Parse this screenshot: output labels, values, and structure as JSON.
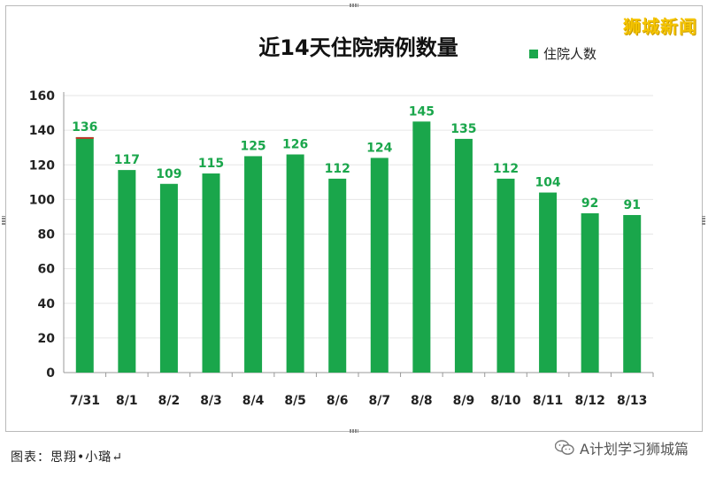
{
  "watermark_top": "狮城新闻",
  "caption": "图表：思翔•小璐↵",
  "wechat_watermark": "A计划学习狮城篇",
  "icons": {
    "wechat": "wechat-icon"
  },
  "colors": {
    "bar": "#1aa64b",
    "label": "#1aa64b",
    "top_highlight": "#c0392b",
    "watermark": "#f5c400"
  },
  "chart_data": {
    "type": "bar",
    "title": "近14天住院病例数量",
    "legend": {
      "position": "top-right",
      "label": "住院人数"
    },
    "categories": [
      "7/31",
      "8/1",
      "8/2",
      "8/3",
      "8/4",
      "8/5",
      "8/6",
      "8/7",
      "8/8",
      "8/9",
      "8/10",
      "8/11",
      "8/12",
      "8/13"
    ],
    "series": [
      {
        "name": "住院人数",
        "values": [
          136,
          117,
          109,
          115,
          125,
          126,
          112,
          124,
          145,
          135,
          112,
          104,
          92,
          91
        ]
      }
    ],
    "ylim": [
      0,
      160
    ],
    "yticks": [
      0,
      20,
      40,
      60,
      80,
      100,
      120,
      140,
      160
    ],
    "grid": true
  }
}
